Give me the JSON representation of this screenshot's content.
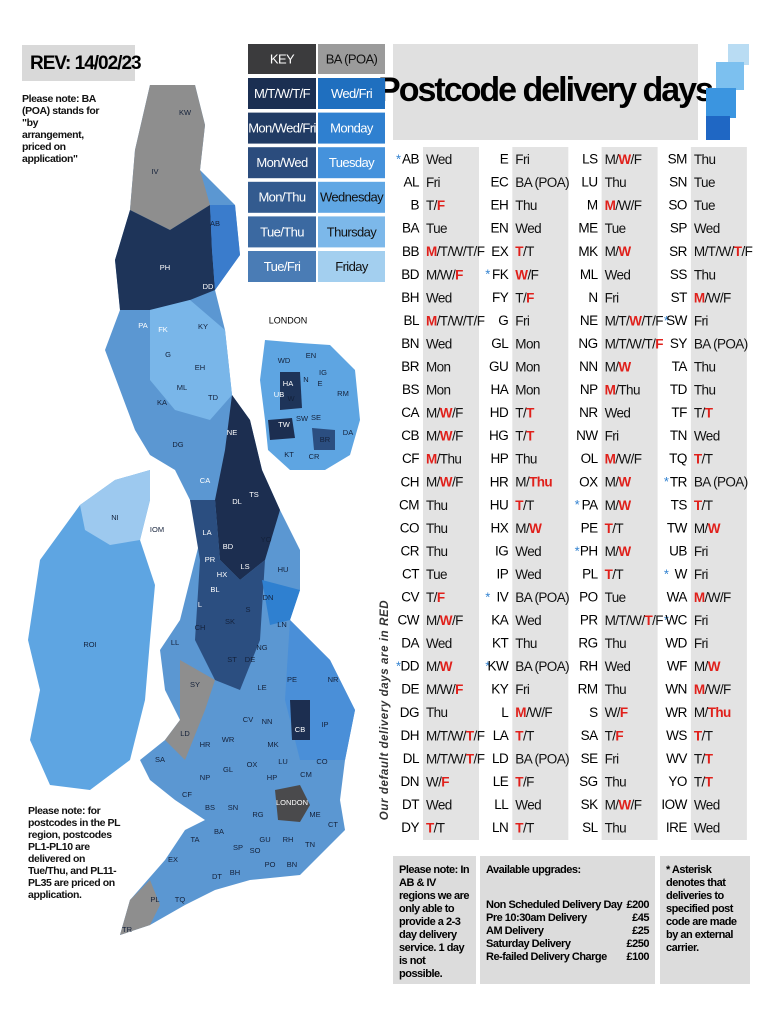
{
  "rev": "REV: 14/02/23",
  "poa_note": "Please note: BA (POA) stands for \"by arrangement, priced on application\"",
  "pl_note": "Please note: for postcodes in the PL region, postcodes PL1-PL10 are delivered on Tue/Thu, and PL11-PL35 are priced on application.",
  "title": "Postcode delivery days",
  "side_note": "Our default delivery days are in RED",
  "key": {
    "header": [
      "KEY",
      "BA (POA)"
    ],
    "header_colors": [
      "#3b3b3d",
      "#9b9b9b"
    ],
    "rows": [
      {
        "left": "M/T/W/T/F",
        "right": "Wed/Fri",
        "left_color": "#1b2f52",
        "right_color": "#1f6fbf"
      },
      {
        "left": "Mon/Wed/Fri",
        "right": "Monday",
        "left_color": "#213b64",
        "right_color": "#2f80d0"
      },
      {
        "left": "Mon/Wed",
        "right": "Tuesday",
        "left_color": "#2b4c7d",
        "right_color": "#4592dc"
      },
      {
        "left": "Mon/Thu",
        "right": "Wednesday",
        "left_color": "#335b8f",
        "right_color": "#60a7e4"
      },
      {
        "left": "Tue/Thu",
        "right": "Thursday",
        "left_color": "#3b69a1",
        "right_color": "#7cb8ea"
      },
      {
        "left": "Tue/Fri",
        "right": "Friday",
        "left_color": "#4a7cb5",
        "right_color": "#a3cfef"
      }
    ]
  },
  "map": {
    "london_title": "LONDON",
    "labels": [
      "KW",
      "IV",
      "AB",
      "PH",
      "DD",
      "PA",
      "FK",
      "KY",
      "G",
      "EH",
      "ML",
      "KA",
      "TD",
      "DG",
      "NE",
      "CA",
      "DL",
      "TS",
      "LA",
      "YO",
      "BD",
      "HU",
      "LS",
      "HX",
      "DN",
      "LN",
      "PR",
      "BL",
      "L",
      "CH",
      "SK",
      "S",
      "ST",
      "NG",
      "LL",
      "DE",
      "LE",
      "PE",
      "NR",
      "SY",
      "LD",
      "HR",
      "WR",
      "CV",
      "NN",
      "MK",
      "CB",
      "IP",
      "SA",
      "GL",
      "OX",
      "LU",
      "CO",
      "HP",
      "CM",
      "CF",
      "NP",
      "BS",
      "SN",
      "RG",
      "GU",
      "RH",
      "TN",
      "ME",
      "CT",
      "EX",
      "TA",
      "BA",
      "SP",
      "SO",
      "PO",
      "BN",
      "DT",
      "BH",
      "TQ",
      "PL",
      "TR",
      "NI",
      "ROI",
      "IOM",
      "LONDON"
    ],
    "inset_labels": [
      "WD",
      "EN",
      "HA",
      "N",
      "E",
      "IG",
      "RM",
      "UB",
      "W",
      "SW",
      "SE",
      "TW",
      "BR",
      "DA",
      "KT",
      "CR"
    ]
  },
  "table": {
    "red_color": "#e0201b",
    "columns": [
      [
        {
          "code": "AB",
          "days": [
            "Wed"
          ],
          "mark": "*"
        },
        {
          "code": "AL",
          "days": [
            "Fri"
          ]
        },
        {
          "code": "B",
          "days": [
            "T/",
            "F"
          ],
          "red": 1
        },
        {
          "code": "BA",
          "days": [
            "Tue"
          ]
        },
        {
          "code": "BB",
          "days": [
            "M",
            "/T/W/T/F"
          ],
          "red": 0
        },
        {
          "code": "BD",
          "days": [
            "M/W/",
            "F"
          ],
          "red": 1
        },
        {
          "code": "BH",
          "days": [
            "Wed"
          ]
        },
        {
          "code": "BL",
          "days": [
            "M",
            "/T/W/T/F"
          ],
          "red": 0
        },
        {
          "code": "BN",
          "days": [
            "Wed"
          ]
        },
        {
          "code": "BR",
          "days": [
            "Mon"
          ]
        },
        {
          "code": "BS",
          "days": [
            "Mon"
          ]
        },
        {
          "code": "CA",
          "days": [
            "M/",
            "W",
            "/F"
          ],
          "red": 1
        },
        {
          "code": "CB",
          "days": [
            "M/",
            "W",
            "/F"
          ],
          "red": 1
        },
        {
          "code": "CF",
          "days": [
            "M",
            "/Thu"
          ],
          "red": 0
        },
        {
          "code": "CH",
          "days": [
            "M/",
            "W",
            "/F"
          ],
          "red": 1
        },
        {
          "code": "CM",
          "days": [
            "Thu"
          ]
        },
        {
          "code": "CO",
          "days": [
            "Thu"
          ]
        },
        {
          "code": "CR",
          "days": [
            "Thu"
          ]
        },
        {
          "code": "CT",
          "days": [
            "Tue"
          ]
        },
        {
          "code": "CV",
          "days": [
            "T/",
            "F"
          ],
          "red": 1
        },
        {
          "code": "CW",
          "days": [
            "M/",
            "W",
            "/F"
          ],
          "red": 1
        },
        {
          "code": "DA",
          "days": [
            "Wed"
          ]
        },
        {
          "code": "DD",
          "days": [
            "M/",
            "W"
          ],
          "red": 1,
          "mark": "*"
        },
        {
          "code": "DE",
          "days": [
            "M/W/",
            "F"
          ],
          "red": 1
        },
        {
          "code": "DG",
          "days": [
            "Thu"
          ]
        },
        {
          "code": "DH",
          "days": [
            "M/T/W/",
            "T",
            "/F"
          ],
          "red": 1
        },
        {
          "code": "DL",
          "days": [
            "M/T/W/",
            "T",
            "/F"
          ],
          "red": 1
        },
        {
          "code": "DN",
          "days": [
            "W/",
            "F"
          ],
          "red": 1
        },
        {
          "code": "DT",
          "days": [
            "Wed"
          ]
        },
        {
          "code": "DY",
          "days": [
            "T",
            "/T"
          ],
          "red": 0
        }
      ],
      [
        {
          "code": "E",
          "days": [
            "Fri"
          ]
        },
        {
          "code": "EC",
          "days": [
            "BA (POA)"
          ]
        },
        {
          "code": "EH",
          "days": [
            "Thu"
          ]
        },
        {
          "code": "EN",
          "days": [
            "Wed"
          ]
        },
        {
          "code": "EX",
          "days": [
            "T",
            "/T"
          ],
          "red": 0
        },
        {
          "code": "FK",
          "days": [
            "W",
            "/F"
          ],
          "red": 0,
          "mark": "*"
        },
        {
          "code": "FY",
          "days": [
            "T/",
            "F"
          ],
          "red": 1
        },
        {
          "code": "G",
          "days": [
            "Fri"
          ]
        },
        {
          "code": "GL",
          "days": [
            "Mon"
          ]
        },
        {
          "code": "GU",
          "days": [
            "Mon"
          ]
        },
        {
          "code": "HA",
          "days": [
            "Mon"
          ]
        },
        {
          "code": "HD",
          "days": [
            "T/",
            "T"
          ],
          "red": 1
        },
        {
          "code": "HG",
          "days": [
            "T/",
            "T"
          ],
          "red": 1
        },
        {
          "code": "HP",
          "days": [
            "Thu"
          ]
        },
        {
          "code": "HR",
          "days": [
            "M/",
            "Thu"
          ],
          "red": 1
        },
        {
          "code": "HU",
          "days": [
            "T",
            "/T"
          ],
          "red": 0
        },
        {
          "code": "HX",
          "days": [
            "M/",
            "W"
          ],
          "red": 1
        },
        {
          "code": "IG",
          "days": [
            "Wed"
          ]
        },
        {
          "code": "IP",
          "days": [
            "Wed"
          ]
        },
        {
          "code": "IV",
          "days": [
            "BA (POA)"
          ],
          "mark": "*"
        },
        {
          "code": "KA",
          "days": [
            "Wed"
          ]
        },
        {
          "code": "KT",
          "days": [
            "Thu"
          ]
        },
        {
          "code": "KW",
          "days": [
            "BA (POA)"
          ],
          "mark": "*"
        },
        {
          "code": "KY",
          "days": [
            "Fri"
          ]
        },
        {
          "code": "L",
          "days": [
            "M",
            "/W/F"
          ],
          "red": 0
        },
        {
          "code": "LA",
          "days": [
            "T",
            "/T"
          ],
          "red": 0
        },
        {
          "code": "LD",
          "days": [
            "BA (POA)"
          ]
        },
        {
          "code": "LE",
          "days": [
            "T",
            "/F"
          ],
          "red": 0
        },
        {
          "code": "LL",
          "days": [
            "Wed"
          ]
        },
        {
          "code": "LN",
          "days": [
            "T",
            "/T"
          ],
          "red": 0
        }
      ],
      [
        {
          "code": "LS",
          "days": [
            "M/",
            "W",
            "/F"
          ],
          "red": 1
        },
        {
          "code": "LU",
          "days": [
            "Thu"
          ]
        },
        {
          "code": "M",
          "days": [
            "M",
            "/W/F"
          ],
          "red": 0
        },
        {
          "code": "ME",
          "days": [
            "Tue"
          ]
        },
        {
          "code": "MK",
          "days": [
            "M/",
            "W"
          ],
          "red": 1
        },
        {
          "code": "ML",
          "days": [
            "Wed"
          ]
        },
        {
          "code": "N",
          "days": [
            "Fri"
          ]
        },
        {
          "code": "NE",
          "days": [
            "M/T/",
            "W",
            "/T/F"
          ],
          "red": 1
        },
        {
          "code": "NG",
          "days": [
            "M/T/W/T/",
            "F"
          ],
          "red": 1
        },
        {
          "code": "NN",
          "days": [
            "M/",
            "W"
          ],
          "red": 1
        },
        {
          "code": "NP",
          "days": [
            "M",
            "/Thu"
          ],
          "red": 0
        },
        {
          "code": "NR",
          "days": [
            "Wed"
          ]
        },
        {
          "code": "NW",
          "days": [
            "Fri"
          ]
        },
        {
          "code": "OL",
          "days": [
            "M",
            "/W/F"
          ],
          "red": 0
        },
        {
          "code": "OX",
          "days": [
            "M/",
            "W"
          ],
          "red": 1
        },
        {
          "code": "PA",
          "days": [
            "M/",
            "W"
          ],
          "red": 1,
          "mark": "*"
        },
        {
          "code": "PE",
          "days": [
            "T",
            "/T"
          ],
          "red": 0
        },
        {
          "code": "PH",
          "days": [
            "M/",
            "W"
          ],
          "red": 1,
          "mark": "*"
        },
        {
          "code": "PL",
          "days": [
            "T",
            "/T"
          ],
          "red": 0
        },
        {
          "code": "PO",
          "days": [
            "Tue"
          ]
        },
        {
          "code": "PR",
          "days": [
            "M/T/W/",
            "T",
            "/F"
          ],
          "red": 1
        },
        {
          "code": "RG",
          "days": [
            "Thu"
          ]
        },
        {
          "code": "RH",
          "days": [
            "Wed"
          ]
        },
        {
          "code": "RM",
          "days": [
            "Thu"
          ]
        },
        {
          "code": "S",
          "days": [
            "W/",
            "F"
          ],
          "red": 1
        },
        {
          "code": "SA",
          "days": [
            "T/",
            "F"
          ],
          "red": 1
        },
        {
          "code": "SE",
          "days": [
            "Fri"
          ]
        },
        {
          "code": "SG",
          "days": [
            "Thu"
          ]
        },
        {
          "code": "SK",
          "days": [
            "M/",
            "W",
            "/F"
          ],
          "red": 1
        },
        {
          "code": "SL",
          "days": [
            "Thu"
          ]
        }
      ],
      [
        {
          "code": "SM",
          "days": [
            "Thu"
          ]
        },
        {
          "code": "SN",
          "days": [
            "Tue"
          ]
        },
        {
          "code": "SO",
          "days": [
            "Tue"
          ]
        },
        {
          "code": "SP",
          "days": [
            "Wed"
          ]
        },
        {
          "code": "SR",
          "days": [
            "M/T/W/",
            "T",
            "/F"
          ],
          "red": 1
        },
        {
          "code": "SS",
          "days": [
            "Thu"
          ]
        },
        {
          "code": "ST",
          "days": [
            "M",
            "/W/F"
          ],
          "red": 0
        },
        {
          "code": "SW",
          "days": [
            "Fri"
          ],
          "mark": "*"
        },
        {
          "code": "SY",
          "days": [
            "BA (POA)"
          ]
        },
        {
          "code": "TA",
          "days": [
            "Thu"
          ]
        },
        {
          "code": "TD",
          "days": [
            "Thu"
          ]
        },
        {
          "code": "TF",
          "days": [
            "T/",
            "T"
          ],
          "red": 1
        },
        {
          "code": "TN",
          "days": [
            "Wed"
          ]
        },
        {
          "code": "TQ",
          "days": [
            "T",
            "/T"
          ],
          "red": 0
        },
        {
          "code": "TR",
          "days": [
            "BA (POA)"
          ],
          "mark": "*"
        },
        {
          "code": "TS",
          "days": [
            "T",
            "/T"
          ],
          "red": 0
        },
        {
          "code": "TW",
          "days": [
            "M/",
            "W"
          ],
          "red": 1
        },
        {
          "code": "UB",
          "days": [
            "Fri"
          ]
        },
        {
          "code": "W",
          "days": [
            "Fri"
          ],
          "mark": "*"
        },
        {
          "code": "WA",
          "days": [
            "M",
            "/W/F"
          ],
          "red": 0
        },
        {
          "code": "WC",
          "days": [
            "Fri"
          ],
          "mark": "*"
        },
        {
          "code": "WD",
          "days": [
            "Fri"
          ]
        },
        {
          "code": "WF",
          "days": [
            "M/",
            "W"
          ],
          "red": 1
        },
        {
          "code": "WN",
          "days": [
            "M",
            "/W/F"
          ],
          "red": 0
        },
        {
          "code": "WR",
          "days": [
            "M/",
            "Thu"
          ],
          "red": 1
        },
        {
          "code": "WS",
          "days": [
            "T",
            "/T"
          ],
          "red": 0
        },
        {
          "code": "WV",
          "days": [
            "T/",
            "T"
          ],
          "red": 1
        },
        {
          "code": "YO",
          "days": [
            "T/",
            "T"
          ],
          "red": 1
        },
        {
          "code": "IOW",
          "days": [
            "Wed"
          ]
        },
        {
          "code": "IRE",
          "days": [
            "Wed"
          ]
        }
      ]
    ]
  },
  "footer": {
    "ab_iv_note": "Please note: In AB & IV regions we are only able to provide a 2-3 day delivery service. 1 day is not possible.",
    "upgrades_title": "Available upgrades:",
    "upgrades": [
      {
        "name": "Non Scheduled Delivery Day",
        "price": "£200"
      },
      {
        "name": "Pre 10:30am Delivery",
        "price": "£45"
      },
      {
        "name": "AM Delivery",
        "price": "£25"
      },
      {
        "name": "Saturday Delivery",
        "price": "£250"
      },
      {
        "name": "Re-failed Delivery Charge",
        "price": "£100"
      }
    ],
    "asterisk_note": "* Asterisk denotes that deliveries to specified post code are made by an external carrier."
  }
}
